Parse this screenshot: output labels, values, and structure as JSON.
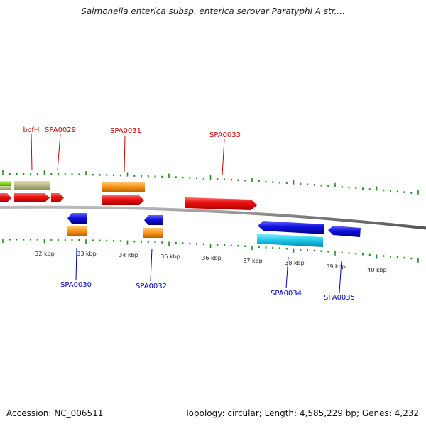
{
  "header": {
    "title": "Salmonella enterica subsp. enterica serovar Paratyphi A str...."
  },
  "footer": {
    "accession": "Accession: NC_006511",
    "topology": "Topology: circular; Length: 4,585,229 bp; Genes: 4,232"
  },
  "colors": {
    "forward_cds": "#ee1111",
    "forward_gene": "#ff9922",
    "forward_misc": "#bbbb88",
    "forward_green": "#88dd22",
    "reverse_cds": "#1111dd",
    "reverse_gene_light": "#22ccee",
    "reverse_gene": "#ff9922",
    "backbone": "#888888",
    "tick": "#228822",
    "forward_label": "#cc0000",
    "reverse_label": "#0000bb"
  },
  "scale_labels": [
    "32 kbp",
    "33 kbp",
    "34 kbp",
    "35 kbp",
    "36 kbp",
    "37 kbp",
    "38 kbp",
    "39 kbp",
    "40 kbp"
  ],
  "forward_labels": [
    "bcfH",
    "SPA0029",
    "SPA0031",
    "SPA0033"
  ],
  "reverse_labels": [
    "SPA0030",
    "SPA0032",
    "SPA0034",
    "SPA0035"
  ]
}
